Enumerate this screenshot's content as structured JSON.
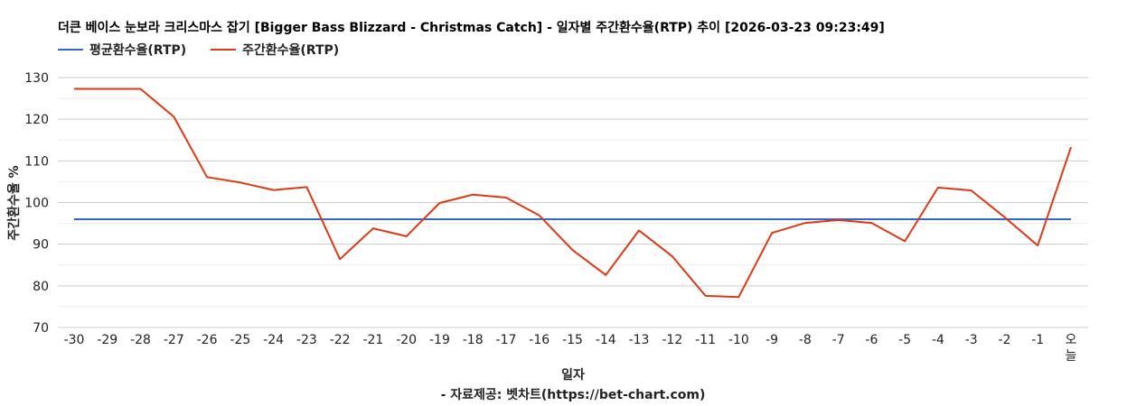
{
  "chart_data": {
    "type": "line",
    "title": "더큰 베이스 눈보라 크리스마스 잡기 [Bigger Bass Blizzard - Christmas Catch] - 일자별 주간환수율(RTP) 추이 [2026-03-23 09:23:49]",
    "xlabel": "일자",
    "ylabel": "주간환수율 %",
    "source": "- 자료제공: 벳차트(https://bet-chart.com)",
    "ylim": [
      70,
      130
    ],
    "yticks": [
      70,
      80,
      90,
      100,
      110,
      120,
      130
    ],
    "grid": true,
    "legend_position": "top-left",
    "categories": [
      "-30",
      "-29",
      "-28",
      "-27",
      "-26",
      "-25",
      "-24",
      "-23",
      "-22",
      "-21",
      "-20",
      "-19",
      "-18",
      "-17",
      "-16",
      "-15",
      "-14",
      "-13",
      "-12",
      "-11",
      "-10",
      "-9",
      "-8",
      "-7",
      "-6",
      "-5",
      "-4",
      "-3",
      "-2",
      "-1",
      "오늘"
    ],
    "series": [
      {
        "name": "평균환수율(RTP)",
        "color": "#3366cc",
        "values": [
          96,
          96,
          96,
          96,
          96,
          96,
          96,
          96,
          96,
          96,
          96,
          96,
          96,
          96,
          96,
          96,
          96,
          96,
          96,
          96,
          96,
          96,
          96,
          96,
          96,
          96,
          96,
          96,
          96,
          96,
          96
        ]
      },
      {
        "name": "주간환수율(RTP)",
        "color": "#dc3912",
        "values": [
          127.3,
          127.3,
          127.3,
          120.6,
          106.1,
          104.8,
          103.0,
          103.7,
          86.4,
          93.8,
          91.9,
          99.9,
          101.9,
          101.2,
          96.9,
          88.6,
          82.6,
          93.3,
          87.1,
          77.6,
          77.3,
          92.7,
          95.1,
          95.8,
          95.1,
          90.7,
          103.6,
          102.9,
          96.5,
          89.7,
          113.3
        ]
      }
    ]
  }
}
